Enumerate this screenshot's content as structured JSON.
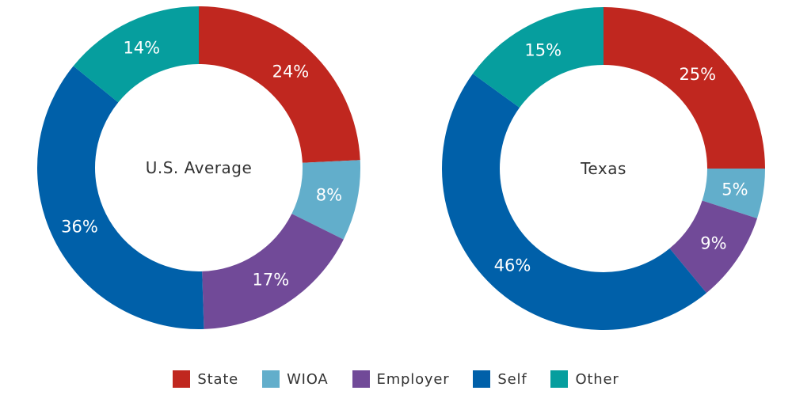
{
  "chart_data": {
    "type": "pie",
    "categories": [
      "State",
      "WIOA",
      "Employer",
      "Self",
      "Other"
    ],
    "colors": [
      "#c0271f",
      "#62aecb",
      "#714a98",
      "#0060a9",
      "#069e9e"
    ],
    "charts": [
      {
        "center_label": "U.S. Average",
        "values": [
          24,
          8,
          17,
          36,
          14
        ],
        "labels": [
          "24%",
          "8%",
          "17%",
          "36%",
          "14%"
        ]
      },
      {
        "center_label": "Texas",
        "values": [
          25,
          5,
          9,
          46,
          15
        ],
        "labels": [
          "25%",
          "5%",
          "9%",
          "46%",
          "15%"
        ]
      }
    ],
    "legend_position": "bottom"
  }
}
